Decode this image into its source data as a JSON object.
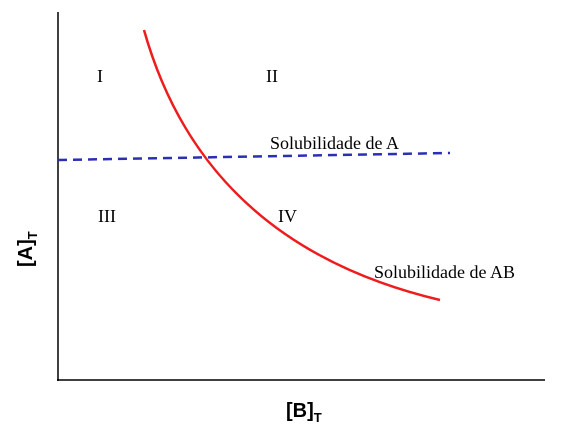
{
  "regions": [
    "I",
    "II",
    "III",
    "IV"
  ],
  "curves": {
    "solubility_a": "Solubilidade de A",
    "solubility_ab": "Solubilidade de AB"
  },
  "axes": {
    "x": {
      "label": "[B]",
      "subscript": "T"
    },
    "y": {
      "label": "[A]",
      "subscript": "T"
    }
  }
}
